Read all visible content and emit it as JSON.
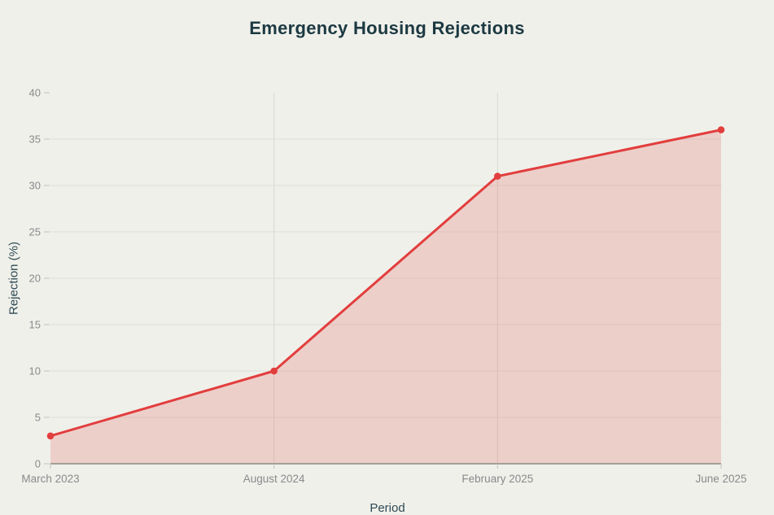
{
  "page": {
    "background_color": "#f0f0ea"
  },
  "chart_data": {
    "type": "area",
    "title": "Emergency Housing Rejections",
    "xlabel": "Period",
    "ylabel": "Rejection (%)",
    "categories": [
      "March 2023",
      "August 2024",
      "February 2025",
      "June 2025"
    ],
    "values": [
      3,
      10,
      31,
      36
    ],
    "ylim": [
      0,
      40
    ],
    "ytick_step": 5,
    "grid": true,
    "vertical_gridline_indices": [
      1,
      2
    ],
    "legend_position": "none",
    "colors": {
      "line": "#e23e3e",
      "point": "#e23e3e",
      "area_fill": "rgba(226,62,62,0.18)",
      "background": "#f0f0ea",
      "h_gridline": "#dededa",
      "v_gridline": "#d8d8d2",
      "axis_line": "#8a8a82",
      "tick_mark": "#c2c2ba",
      "tick_text": "#888a8c",
      "axis_label_text": "#2d4a54",
      "title_text": "#1c3942"
    }
  }
}
